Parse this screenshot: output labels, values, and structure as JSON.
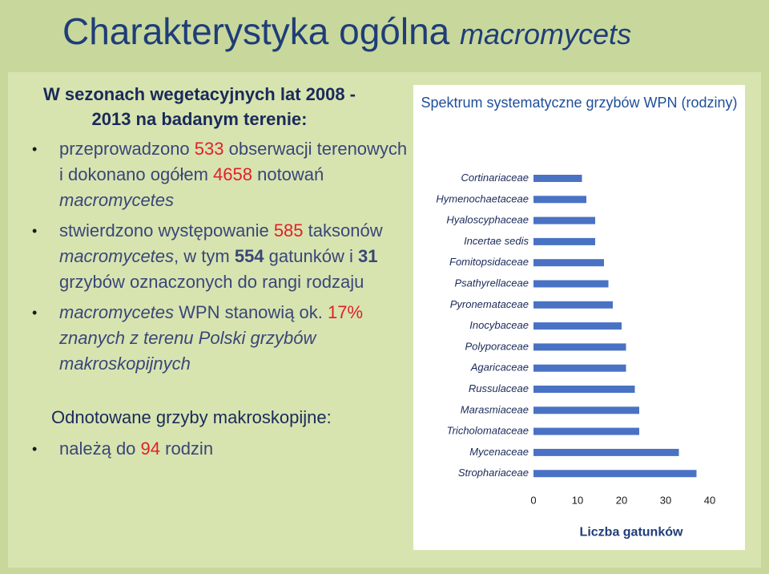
{
  "title": {
    "main": "Charakterystyka ogólna",
    "sub": "macromycets"
  },
  "left": {
    "heading": "W sezonach wegetacyjnych lat 2008 - 2013 na badanym terenie:",
    "bullet1": {
      "p1": "przeprowadzono ",
      "n1": "533",
      "p2": " obserwacji terenowych i dokonano ogółem ",
      "n2": "4658",
      "p3": " notowań ",
      "it": "macromycetes"
    },
    "bullet2": {
      "p1": "stwierdzono występowanie ",
      "n1": "585",
      "p2": " taksonów ",
      "it": "macromycetes",
      "p3": ", w tym ",
      "b1": "554",
      "p4": " gatunków i ",
      "b2": "31",
      "p5": " grzybów oznaczonych do rangi rodzaju"
    },
    "bullet3": {
      "it1": "macromycetes",
      "p1": " WPN  stanowią ok. ",
      "n1": "17%",
      "p2": " ",
      "it2": "znanych z terenu Polski grzybów makroskopijnych"
    },
    "heading2": "Odnotowane grzyby makroskopijne:",
    "bullet4": {
      "p1": "należą do ",
      "n1": "94",
      "p2": " rodzin"
    }
  },
  "chart_data": {
    "type": "bar",
    "orientation": "horizontal",
    "title": "Spektrum systematyczne grzybów WPN (rodziny)",
    "xlabel": "Liczba gatunków",
    "xlim": [
      0,
      40
    ],
    "xticks": [
      "0",
      "10",
      "20",
      "30",
      "40"
    ],
    "categories": [
      "Cortinariaceae",
      "Hymenochaetaceae",
      "Hyaloscyphaceae",
      "Incertae sedis",
      "Fomitopsidaceae",
      "Psathyrellaceae",
      "Pyronemataceae",
      "Inocybaceae",
      "Polyporaceae",
      "Agaricaceae",
      "Russulaceae",
      "Marasmiaceae",
      "Tricholomataceae",
      "Mycenaceae",
      "Strophariaceae"
    ],
    "values": [
      11,
      12,
      14,
      14,
      16,
      17,
      18,
      20,
      21,
      21,
      23,
      24,
      24,
      33,
      37
    ],
    "bar_color": "#4a72c4",
    "grid": false
  }
}
